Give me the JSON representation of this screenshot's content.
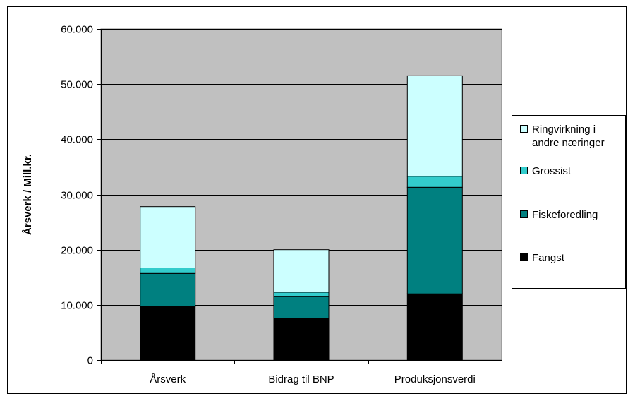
{
  "chart_data": {
    "type": "bar",
    "stacked": true,
    "ylabel": "Årsverk / Mill.kr.",
    "ylim": [
      0,
      60000
    ],
    "yticks": [
      0,
      10000,
      20000,
      30000,
      40000,
      50000,
      60000
    ],
    "ytick_labels": [
      "0",
      "10.000",
      "20.000",
      "30.000",
      "40.000",
      "50.000",
      "60.000"
    ],
    "categories": [
      "Årsverk",
      "Bidrag til BNP",
      "Produksjonsverdi"
    ],
    "series": [
      {
        "name": "Fangst",
        "color": "#000000",
        "values": [
          9700,
          7600,
          12000
        ]
      },
      {
        "name": "Fiskeforedling",
        "color": "#008080",
        "values": [
          6000,
          3900,
          19300
        ]
      },
      {
        "name": "Grossist",
        "color": "#33cccc",
        "values": [
          1000,
          800,
          2000
        ]
      },
      {
        "name": "Ringvirkning i andre næringer",
        "color": "#ccffff",
        "values": [
          11100,
          7700,
          18200
        ]
      }
    ],
    "legend": {
      "placement": "right",
      "entries": [
        {
          "series": "Ringvirkning i andre næringer",
          "lines": [
            "Ringvirkning i",
            "andre næringer"
          ]
        },
        {
          "series": "Grossist",
          "lines": [
            "Grossist"
          ]
        },
        {
          "series": "Fiskeforedling",
          "lines": [
            "Fiskeforedling"
          ]
        },
        {
          "series": "Fangst",
          "lines": [
            "Fangst"
          ]
        }
      ]
    },
    "plot_background": "#c0c0c0",
    "grid": true
  }
}
